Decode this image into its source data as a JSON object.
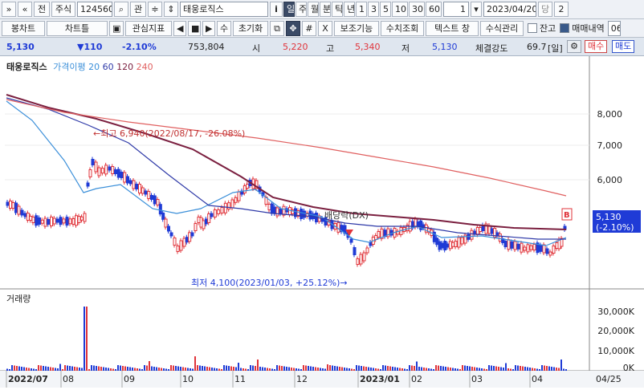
{
  "toolbar1": {
    "nav_first": "»",
    "nav_up": "«",
    "jeon": "전",
    "market": "주식",
    "code": "124560",
    "search_icon": "search-icon",
    "gwan": "관",
    "stepper": "≑",
    "name": "태웅로직스",
    "info": "i",
    "periods": [
      "일",
      "주",
      "월",
      "분",
      "틱",
      "년",
      "1",
      "3",
      "5",
      "10",
      "30",
      "60"
    ],
    "period_selected": "일",
    "count": "1",
    "date": "2023/04/20",
    "dang": "당",
    "cal": "2"
  },
  "toolbar2": {
    "bongchart": "봉차트",
    "charttul": "차트틀",
    "save_icon": "save-icon",
    "gwansim": "관심지표",
    "prev": "◀",
    "stop": "■",
    "next": "▶",
    "su": "수",
    "reset": "초기화",
    "copy_icon": "copy-icon",
    "move_icon": "move-icon",
    "cross1": "#",
    "cross2": "X",
    "assist": "보조기능",
    "numview": "수치조회",
    "textwin": "텍스트 창",
    "formula": "수식관리",
    "balance": "잔고",
    "history": "매매내역",
    "more": "06"
  },
  "quote": {
    "price": "5,130",
    "change": "▼110",
    "rate": "-2.10%",
    "volume": "753,804",
    "open_label": "시",
    "open": "5,220",
    "high_label": "고",
    "high": "5,340",
    "low_label": "저",
    "low": "5,130",
    "strength_label": "체결강도",
    "strength": "69.7",
    "period_unit": "[일]",
    "buy": "매수",
    "sell": "매도"
  },
  "price_panel": {
    "legend_title": "태웅로직스",
    "legend_ma": "가격이평",
    "ma_periods": [
      "20",
      "60",
      "120",
      "240"
    ],
    "ma_colors": [
      "#3b8fd9",
      "#2f3aa8",
      "#7b2040",
      "#e06060"
    ],
    "y_ticks": [
      "8,000",
      "7,000",
      "6,000"
    ],
    "high_note": "←최고 6,940(2022/08/17, -26.08%)",
    "low_note": "최저 4,100(2023/01/03, +25.12%)→",
    "div_note": "배당락(DX)",
    "last_label": "5,130",
    "last_rate": "(-2.10%)",
    "b_mark": "B"
  },
  "volume_panel": {
    "title": "거래량",
    "y_ticks": [
      "30,000K",
      "20,000K",
      "10,000K",
      "0K"
    ]
  },
  "x_axis": {
    "labels": [
      "2022/07",
      "08",
      "09",
      "10",
      "11",
      "12",
      "2023/01",
      "02",
      "03",
      "04"
    ],
    "last": "04/25"
  },
  "colors": {
    "up": "#e0343b",
    "down": "#1f3bd6",
    "accent": "#3a4a66"
  }
}
